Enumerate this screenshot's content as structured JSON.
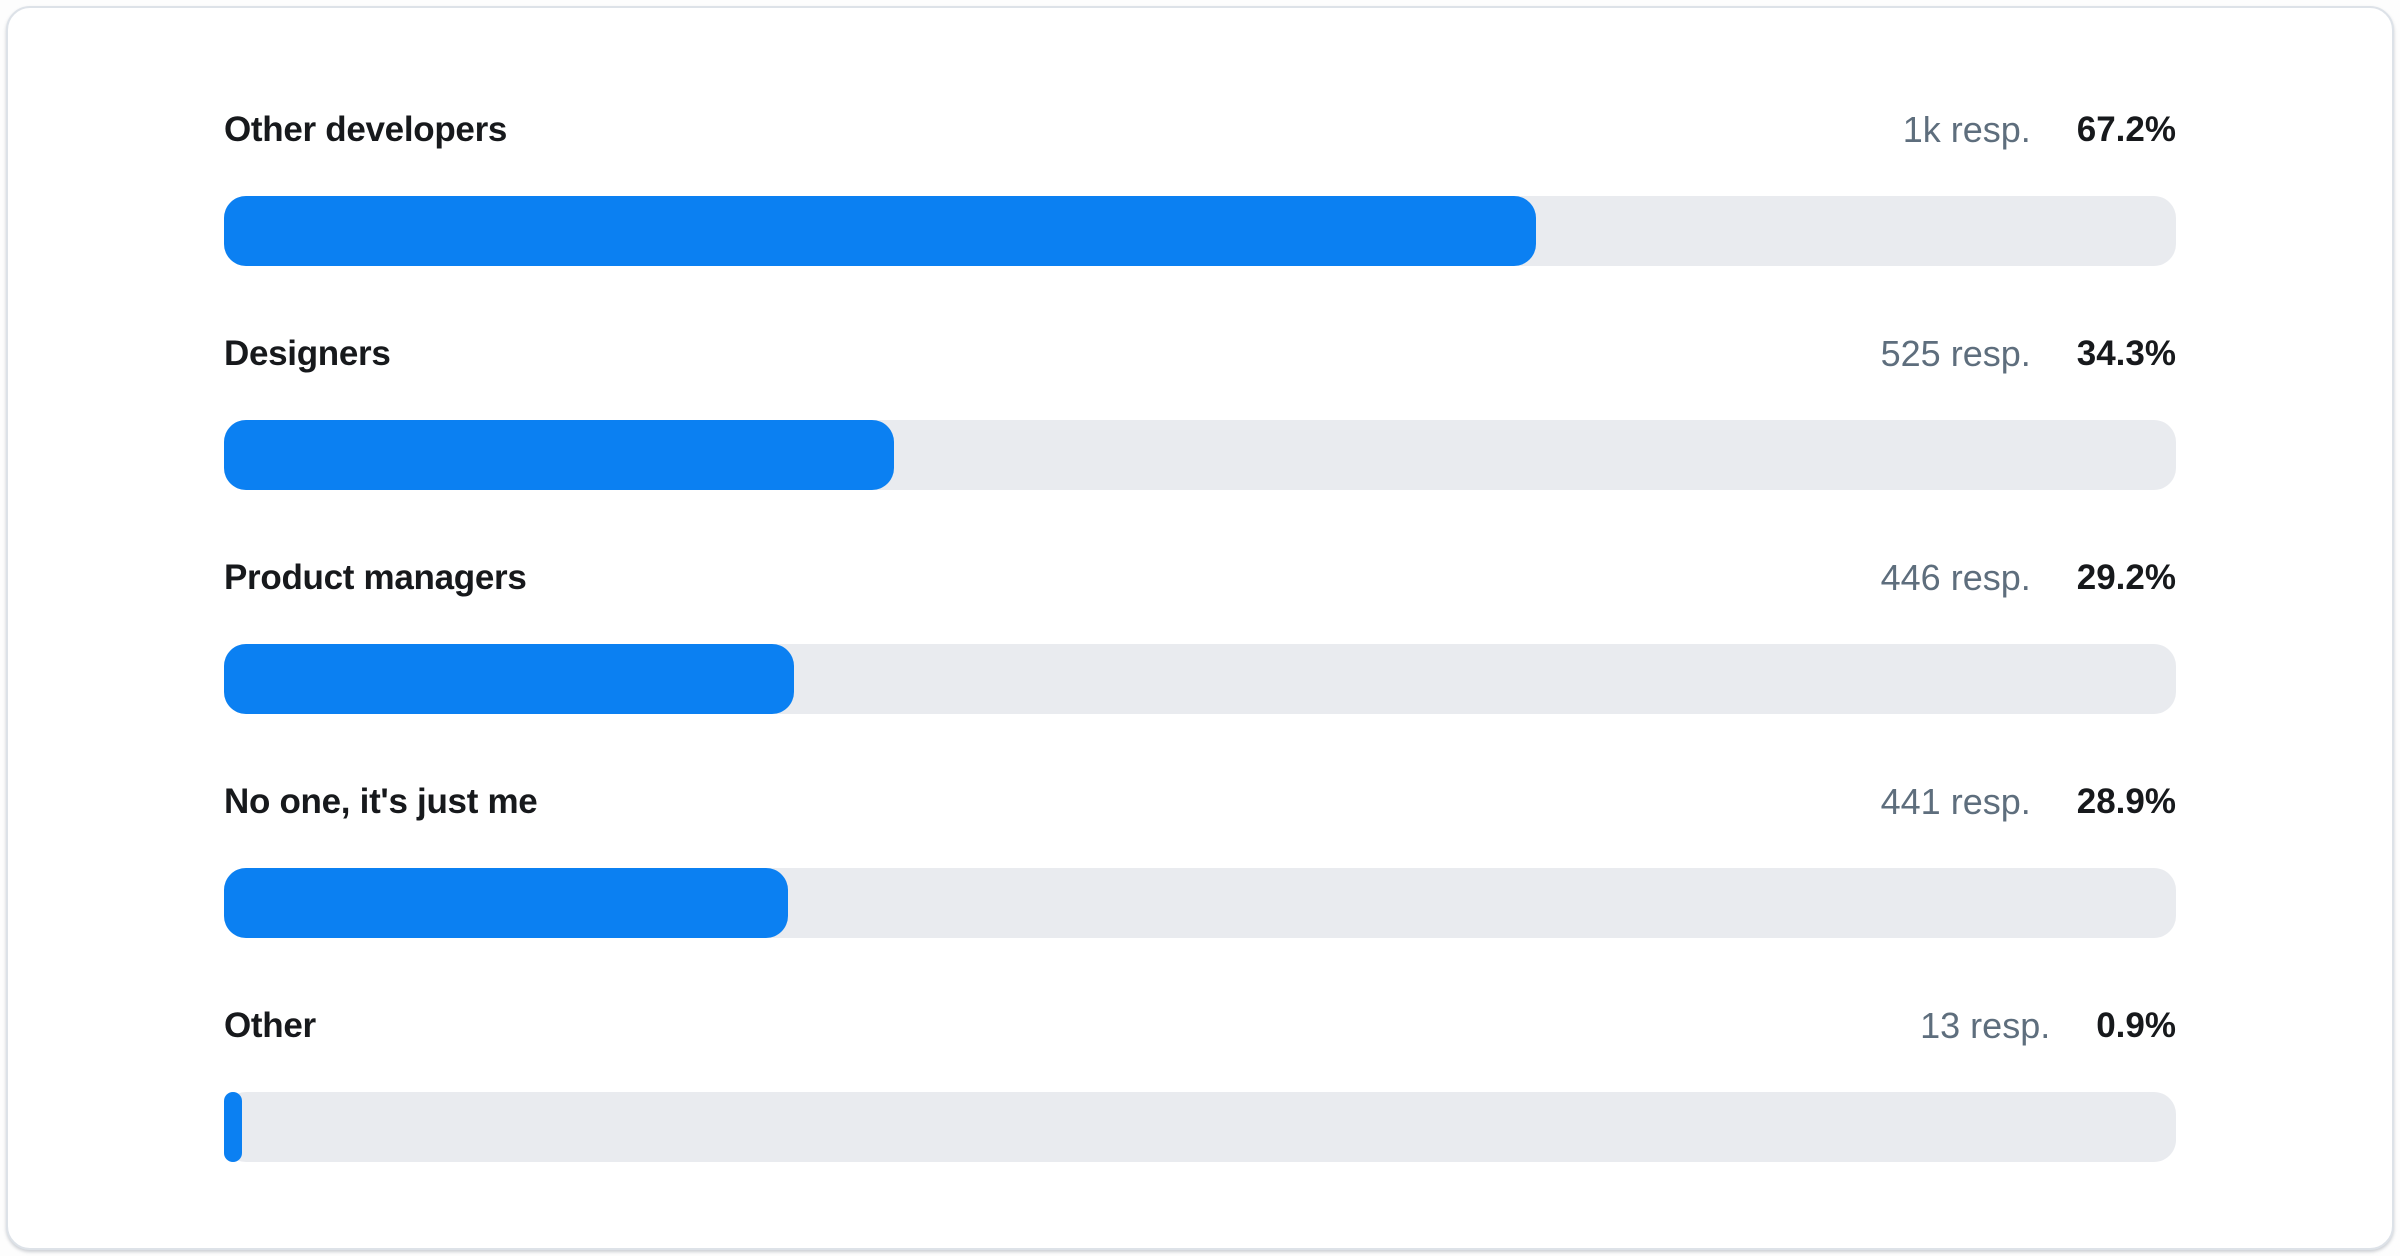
{
  "chart_data": {
    "type": "bar",
    "orientation": "horizontal",
    "title": "",
    "value_axis": {
      "min": 0,
      "max": 100,
      "unit": "%"
    },
    "rows": [
      {
        "label": "Other developers",
        "respondents": "1k resp.",
        "percent_label": "67.2%",
        "value": 67.2
      },
      {
        "label": "Designers",
        "respondents": "525 resp.",
        "percent_label": "34.3%",
        "value": 34.3
      },
      {
        "label": "Product managers",
        "respondents": "446 resp.",
        "percent_label": "29.2%",
        "value": 29.2
      },
      {
        "label": "No one, it's just me",
        "respondents": "441 resp.",
        "percent_label": "28.9%",
        "value": 28.9
      },
      {
        "label": "Other",
        "respondents": "13 resp.",
        "percent_label": "0.9%",
        "value": 0.9
      }
    ],
    "colors": {
      "bar_fill": "#0b80f2",
      "bar_track": "#e9ebef",
      "label_text": "#17191c",
      "respondents_text": "#5e6e7d",
      "card_background": "#ffffff",
      "card_border": "#dde2e8"
    }
  }
}
